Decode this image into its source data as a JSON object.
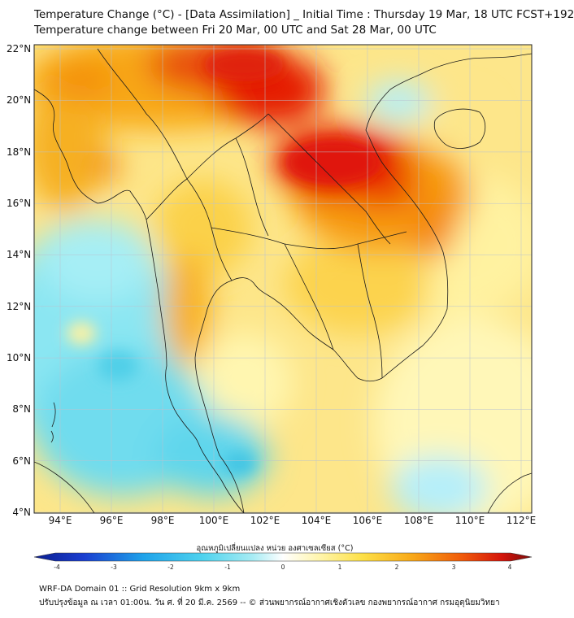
{
  "title": {
    "line1": "Temperature Change (°C) - [Data Assimilation] _ Initial Time : Thursday 19 Mar, 18 UTC FCST+192",
    "line2": "Temperature change between Fri 20 Mar, 00 UTC and Sat 28 Mar, 00 UTC"
  },
  "map": {
    "lat_labels": [
      "22°N",
      "20°N",
      "18°N",
      "16°N",
      "14°N",
      "12°N",
      "10°N",
      "8°N",
      "6°N",
      "4°N"
    ],
    "lon_labels": [
      "94°E",
      "96°E",
      "98°E",
      "100°E",
      "102°E",
      "104°E",
      "106°E",
      "108°E",
      "110°E",
      "112°E"
    ],
    "lat_range": [
      4,
      22.2
    ],
    "lon_range": [
      93,
      112.4
    ],
    "colors": {
      "strong_warm": "#e51c06",
      "warm": "#f79a10",
      "mild_warm": "#fde047",
      "neutral": "#fff7a8",
      "cool": "#7fe6f2",
      "strong_cool": "#3fcfe8"
    }
  },
  "colorbar": {
    "title": "อุณหภูมิเปลี่ยนแปลง หน่วย องศาเซลเซียส (°C)",
    "ticks": [
      "-4",
      "-3",
      "-2",
      "-1",
      "0",
      "1",
      "2",
      "3",
      "4"
    ],
    "range": [
      -4,
      4
    ]
  },
  "footer": {
    "line1": "WRF-DA Domain 01 :: Grid Resolution 9km x 9km",
    "line2": "ปรับปรุงข้อมูล ณ เวลา 01:00น. วัน ศ. ที่ 20 มี.ค. 2569 -- © ส่วนพยากรณ์อากาศเชิงตัวเลข กองพยากรณ์อากาศ กรมอุตุนิยมวิทยา"
  }
}
